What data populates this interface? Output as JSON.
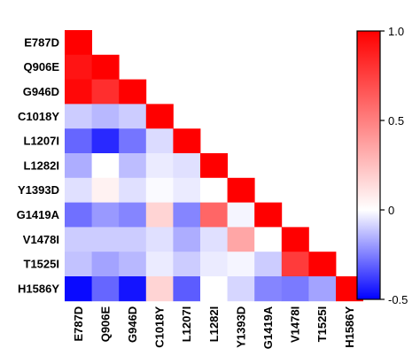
{
  "chart_data": {
    "type": "heatmap",
    "title": "",
    "labels": [
      "E787D",
      "Q906E",
      "G946D",
      "C1018Y",
      "L1207I",
      "L1282I",
      "Y1393D",
      "G1419A",
      "V1478I",
      "T1525I",
      "H1586Y"
    ],
    "lower_triangle": true,
    "values": [
      [
        1.0
      ],
      [
        0.92,
        1.0
      ],
      [
        0.97,
        0.82,
        1.0
      ],
      [
        -0.1,
        -0.14,
        -0.1,
        1.0
      ],
      [
        -0.3,
        -0.42,
        -0.27,
        -0.07,
        1.0
      ],
      [
        -0.16,
        0.0,
        -0.13,
        -0.04,
        -0.06,
        1.0
      ],
      [
        -0.06,
        0.05,
        -0.06,
        -0.01,
        -0.04,
        0.0,
        1.0
      ],
      [
        -0.28,
        -0.2,
        -0.24,
        0.17,
        -0.24,
        0.6,
        -0.02,
        1.0
      ],
      [
        -0.1,
        -0.1,
        -0.1,
        -0.06,
        -0.16,
        -0.06,
        0.35,
        0.0,
        1.0
      ],
      [
        -0.12,
        -0.18,
        -0.14,
        -0.04,
        -0.1,
        -0.04,
        -0.02,
        -0.1,
        0.77,
        1.0
      ],
      [
        -0.48,
        -0.3,
        -0.46,
        0.17,
        -0.32,
        0.0,
        -0.08,
        -0.24,
        -0.26,
        -0.18,
        1.0
      ]
    ],
    "colorbar": {
      "min": -0.5,
      "max": 1.0,
      "ticks": [
        1.0,
        0.5,
        0,
        -0.5
      ],
      "tick_labels": [
        "1.0",
        "0.5",
        "0",
        "-0.5"
      ]
    },
    "colors": {
      "negative": "#0000ff",
      "zero": "#ffffff",
      "positive": "#ff0000"
    },
    "grid": false
  }
}
